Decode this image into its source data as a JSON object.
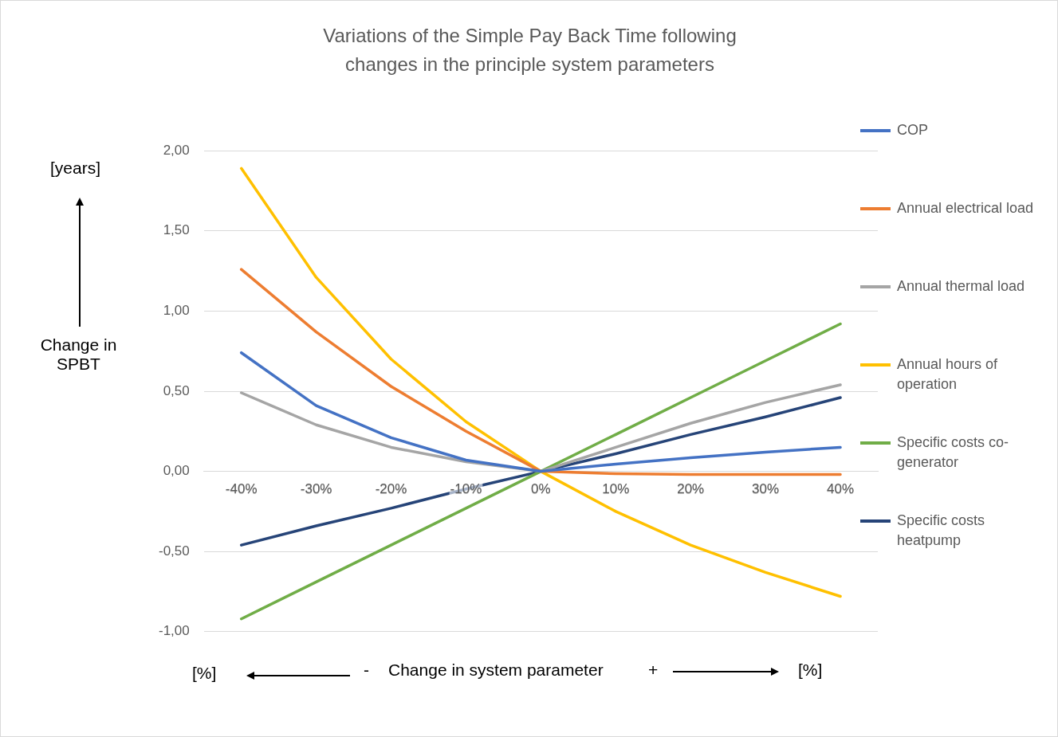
{
  "chart_data": {
    "type": "line",
    "title": "Variations of the Simple Pay Back Time following\nchanges in the principle system parameters",
    "xlabel": "Change in system parameter",
    "ylabel": "Change in SPBT",
    "categories": [
      "-40%",
      "-30%",
      "-20%",
      "-10%",
      "0%",
      "10%",
      "20%",
      "30%",
      "40%"
    ],
    "series": [
      {
        "name": "COP",
        "color": "#4472c4",
        "values": [
          0.74,
          0.41,
          0.21,
          0.07,
          0,
          0.045,
          0.085,
          0.12,
          0.15
        ]
      },
      {
        "name": "Annual electrical load",
        "color": "#ed7d31",
        "values": [
          1.26,
          0.87,
          0.53,
          0.25,
          0,
          -0.015,
          -0.02,
          -0.02,
          -0.02
        ]
      },
      {
        "name": "Annual thermal load",
        "color": "#a5a5a5",
        "values": [
          0.49,
          0.29,
          0.15,
          0.06,
          0,
          0.15,
          0.3,
          0.43,
          0.54
        ]
      },
      {
        "name": "Annual hours of operation",
        "color": "#ffc000",
        "values": [
          1.89,
          1.21,
          0.7,
          0.31,
          0,
          -0.25,
          -0.46,
          -0.63,
          -0.78
        ]
      },
      {
        "name": "Specific costs co-generator",
        "color": "#70ad47",
        "values": [
          -0.92,
          -0.69,
          -0.46,
          -0.23,
          0,
          0.23,
          0.46,
          0.69,
          0.92
        ]
      },
      {
        "name": "Specific costs heatpump",
        "color": "#264478",
        "values": [
          -0.46,
          -0.34,
          -0.23,
          -0.11,
          0,
          0.11,
          0.23,
          0.34,
          0.46
        ]
      }
    ],
    "ylim": [
      -1,
      2
    ],
    "yticks": [
      {
        "value": -1,
        "label": "-1,00"
      },
      {
        "value": -0.5,
        "label": "-0,50"
      },
      {
        "value": 0,
        "label": "0,00"
      },
      {
        "value": 0.5,
        "label": "0,50"
      },
      {
        "value": 1,
        "label": "1,00"
      },
      {
        "value": 1.5,
        "label": "1,50"
      },
      {
        "value": 2,
        "label": "2,00"
      }
    ],
    "grid": "y",
    "legend": "right",
    "marker": "none",
    "line_style": "solid",
    "annotations": [
      "[years]",
      "[%]",
      "-",
      "+",
      "[%]"
    ]
  }
}
